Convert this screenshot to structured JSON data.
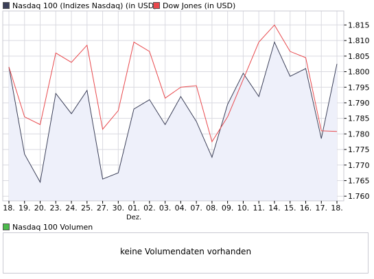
{
  "legend": {
    "series_1": "Nasdaq 100 (Indizes Nasdaq) (in USD)",
    "series_2": "Dow Jones (in USD)",
    "volume": "Nasdaq 100 Volumen"
  },
  "colors": {
    "series_1": "#3b3f58",
    "series_1_fill": "#eef0fa",
    "series_2": "#e8484c",
    "volume": "#4cbb4c",
    "grid": "#d9d9e0",
    "frame": "#c9c9d2"
  },
  "volume_message": "keine Volumendaten vorhanden",
  "chart_data": {
    "type": "line",
    "title": "",
    "xlabel": "",
    "ylabel": "",
    "categories": [
      "18.",
      "19.",
      "20.",
      "23.",
      "24.",
      "25.",
      "27.",
      "30.",
      "01.",
      "02.",
      "03.",
      "04.",
      "07.",
      "08.",
      "09.",
      "10.",
      "11.",
      "14.",
      "15.",
      "16.",
      "17.",
      "18."
    ],
    "category_sublabels": {
      "8": "Dez."
    },
    "series": [
      {
        "name": "Nasdaq 100 (Indizes Nasdaq) (in USD)",
        "values": [
          1.8015,
          1.7735,
          1.7645,
          1.793,
          1.7865,
          1.794,
          1.7655,
          1.7675,
          1.788,
          1.791,
          1.783,
          1.792,
          1.784,
          1.7725,
          1.7895,
          1.7995,
          1.792,
          1.8095,
          1.7985,
          1.801,
          1.7785,
          1.8025
        ]
      },
      {
        "name": "Dow Jones (in USD)",
        "values": [
          1.8015,
          1.7855,
          1.783,
          1.806,
          1.803,
          1.8085,
          1.7815,
          1.7875,
          1.8095,
          1.8065,
          1.7915,
          1.795,
          1.7955,
          1.7775,
          1.7855,
          1.7975,
          1.8095,
          1.815,
          1.8065,
          1.8045,
          1.781,
          1.7808
        ]
      }
    ],
    "yticks": [
      1.76,
      1.765,
      1.77,
      1.775,
      1.78,
      1.785,
      1.79,
      1.795,
      1.8,
      1.805,
      1.81,
      1.815
    ],
    "ytick_labels": [
      "1.760",
      "1.765",
      "1.770",
      "1.775",
      "1.780",
      "1.785",
      "1.790",
      "1.795",
      "1.800",
      "1.805",
      "1.810",
      "1.815"
    ],
    "ylim": [
      1.7585,
      1.8195
    ],
    "y_axis_side": "right",
    "grid": true,
    "legend_position": "top-left"
  }
}
